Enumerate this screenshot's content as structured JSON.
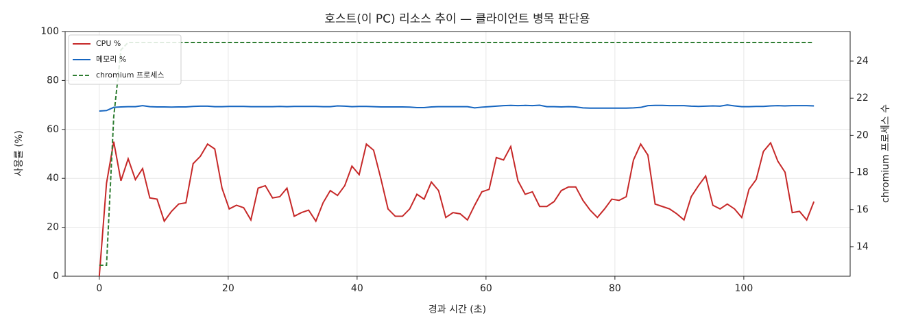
{
  "chart_data": {
    "type": "line",
    "title": "호스트(이 PC) 리소스 추이 — 클라이언트 병목 판단용",
    "xlabel": "경과 시간 (초)",
    "ylabel": "사용률 (%)",
    "y2label": "chromium 프로세스 수",
    "x": [
      0,
      1.12,
      2.24,
      3.36,
      4.48,
      5.6,
      6.72,
      7.84,
      8.96,
      10.08,
      11.2,
      12.32,
      13.44,
      14.56,
      15.68,
      16.8,
      17.92,
      19.04,
      20.16,
      21.28,
      22.4,
      23.52,
      24.64,
      25.76,
      26.88,
      28,
      29.12,
      30.24,
      31.36,
      32.48,
      33.6,
      34.72,
      35.84,
      36.96,
      38.08,
      39.2,
      40.32,
      41.44,
      42.56,
      43.68,
      44.8,
      45.92,
      47.04,
      48.16,
      49.28,
      50.4,
      51.52,
      52.64,
      53.76,
      54.88,
      56,
      57.12,
      58.24,
      59.36,
      60.48,
      61.6,
      62.72,
      63.84,
      64.96,
      66.08,
      67.2,
      68.32,
      69.44,
      70.56,
      71.68,
      72.8,
      73.92,
      75.04,
      76.16,
      77.28,
      78.4,
      79.52,
      80.64,
      81.76,
      82.88,
      84,
      85.12,
      86.24,
      87.36,
      88.48,
      89.6,
      90.72,
      91.84,
      92.96,
      94.08,
      95.2,
      96.32,
      97.44,
      98.56,
      99.68,
      100.8,
      101.92,
      103.04,
      104.16,
      105.28,
      106.4,
      107.52,
      108.64,
      109.76,
      110.88
    ],
    "series": [
      {
        "name": "CPU %",
        "color": "#c62828",
        "linestyle": "solid",
        "axis": "y",
        "values": [
          0,
          38,
          55,
          39,
          48,
          39.5,
          44,
          32,
          31.5,
          22.5,
          26.5,
          29.5,
          30,
          46,
          49,
          54,
          52,
          36,
          27.5,
          29,
          28,
          23,
          36,
          37,
          32,
          32.5,
          36,
          24.5,
          26,
          27,
          22.5,
          30,
          35,
          33,
          37,
          45,
          41.5,
          54,
          51.5,
          40,
          27.5,
          24.5,
          24.5,
          27.5,
          33.5,
          31.5,
          38.5,
          35,
          24,
          26,
          25.5,
          23,
          29,
          34.5,
          35.5,
          48.5,
          47.5,
          53,
          39,
          33.5,
          34.5,
          28.5,
          28.5,
          30.5,
          35,
          36.5,
          36.5,
          31,
          27,
          24,
          27.5,
          31.5,
          31,
          32.5,
          47.5,
          54,
          49.5,
          29.5,
          28.5,
          27.5,
          25.5,
          23,
          32.5,
          37,
          41,
          29,
          27.5,
          29.5,
          27.5,
          24,
          35.5,
          39.5,
          51,
          54.5,
          47,
          42.5,
          26,
          26.5,
          23,
          30.5
        ]
      },
      {
        "name": "메모리 %",
        "color": "#1565c0",
        "linestyle": "solid",
        "axis": "y",
        "values": [
          67.5,
          67.7,
          69,
          69.2,
          69.3,
          69.3,
          69.7,
          69.3,
          69.2,
          69.2,
          69.1,
          69.2,
          69.2,
          69.4,
          69.5,
          69.5,
          69.3,
          69.3,
          69.4,
          69.4,
          69.4,
          69.3,
          69.3,
          69.3,
          69.3,
          69.4,
          69.3,
          69.4,
          69.4,
          69.4,
          69.4,
          69.3,
          69.3,
          69.6,
          69.5,
          69.3,
          69.4,
          69.4,
          69.3,
          69.2,
          69.2,
          69.2,
          69.2,
          69.1,
          68.9,
          68.9,
          69.2,
          69.3,
          69.3,
          69.3,
          69.3,
          69.3,
          68.8,
          69.1,
          69.3,
          69.5,
          69.7,
          69.8,
          69.7,
          69.8,
          69.7,
          69.9,
          69.3,
          69.3,
          69.2,
          69.3,
          69.2,
          68.8,
          68.7,
          68.7,
          68.7,
          68.7,
          68.7,
          68.7,
          68.8,
          69,
          69.7,
          69.8,
          69.8,
          69.7,
          69.7,
          69.7,
          69.5,
          69.4,
          69.5,
          69.6,
          69.5,
          70,
          69.6,
          69.3,
          69.3,
          69.4,
          69.4,
          69.6,
          69.7,
          69.6,
          69.7,
          69.7,
          69.7,
          69.6
        ]
      },
      {
        "name": "chromium 프로세스",
        "color": "#2e7d32",
        "linestyle": "dashed",
        "axis": "y2",
        "values": [
          13,
          13,
          21,
          24.6,
          25,
          25,
          25,
          25,
          25,
          25,
          25,
          25,
          25,
          25,
          25,
          25,
          25,
          25,
          25,
          25,
          25,
          25,
          25,
          25,
          25,
          25,
          25,
          25,
          25,
          25,
          25,
          25,
          25,
          25,
          25,
          25,
          25,
          25,
          25,
          25,
          25,
          25,
          25,
          25,
          25,
          25,
          25,
          25,
          25,
          25,
          25,
          25,
          25,
          25,
          25,
          25,
          25,
          25,
          25,
          25,
          25,
          25,
          25,
          25,
          25,
          25,
          25,
          25,
          25,
          25,
          25,
          25,
          25,
          25,
          25,
          25,
          25,
          25,
          25,
          25,
          25,
          25,
          25,
          25,
          25,
          25,
          25,
          25,
          25,
          25,
          25,
          25,
          25,
          25,
          25,
          25,
          25,
          25,
          25,
          25
        ]
      }
    ],
    "xlim": [
      -5.3,
      116.5
    ],
    "ylim": [
      0,
      100
    ],
    "y2lim": [
      12.41,
      25.59
    ],
    "xticks": [
      0,
      20,
      40,
      60,
      80,
      100
    ],
    "yticks": [
      0,
      20,
      40,
      60,
      80,
      100
    ],
    "y2ticks": [
      14,
      16,
      18,
      20,
      22,
      24
    ],
    "grid": true,
    "legend": "upper-left"
  }
}
